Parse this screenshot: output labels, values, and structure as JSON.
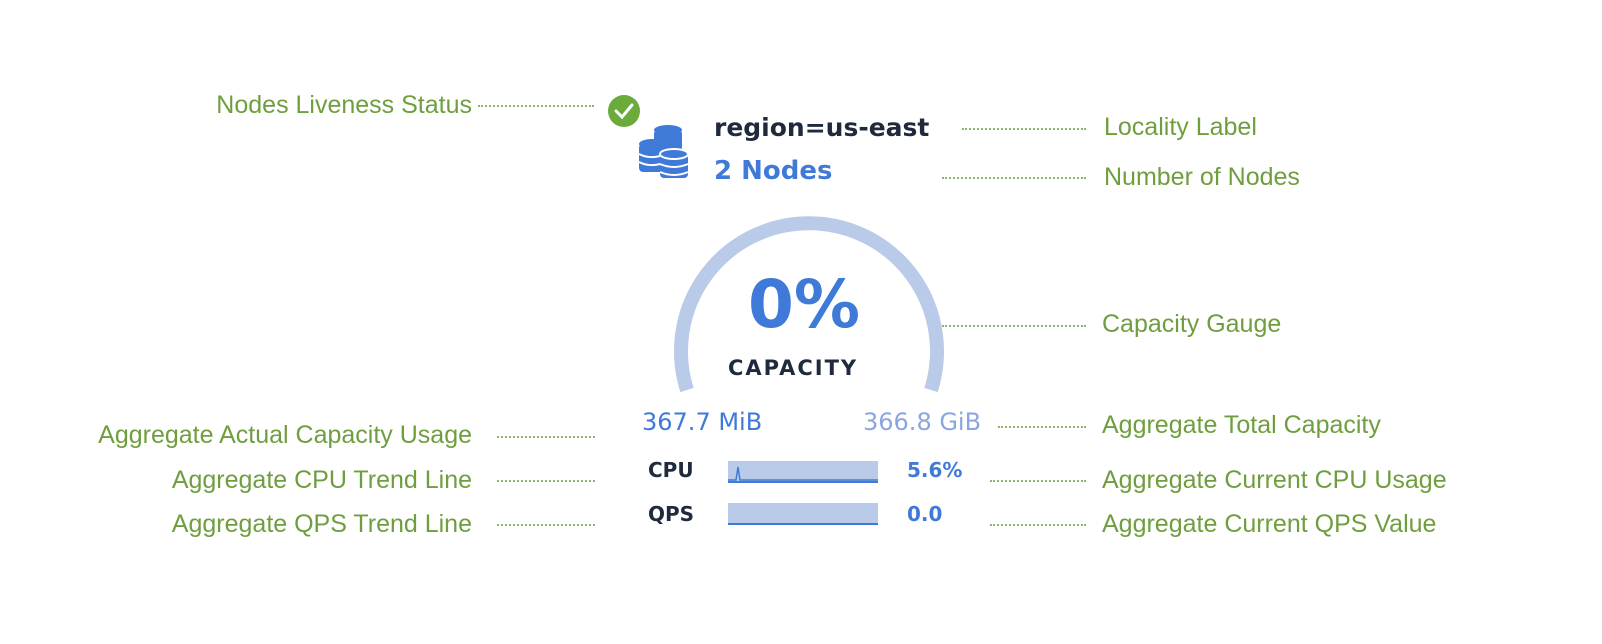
{
  "node_card": {
    "locality": "region=us-east",
    "nodes": "2 Nodes",
    "capacity_percent": "0%",
    "capacity_label": "CAPACITY",
    "used": "367.7 MiB",
    "total": "366.8 GiB",
    "cpu_label": "CPU",
    "cpu_value": "5.6%",
    "qps_label": "QPS",
    "qps_value": "0.0",
    "liveness": "live",
    "colors": {
      "accent": "#3f7ad8",
      "gauge": "#b9cbe8",
      "live": "#6aab3c",
      "annotation": "#6f9e3f"
    }
  },
  "annotations": {
    "liveness": "Nodes Liveness Status",
    "locality": "Locality Label",
    "node_count": "Number of Nodes",
    "gauge": "Capacity Gauge",
    "actual_usage": "Aggregate Actual Capacity Usage",
    "total_capacity": "Aggregate Total Capacity",
    "cpu_trend": "Aggregate CPU Trend Line",
    "cpu_current": "Aggregate Current CPU Usage",
    "qps_trend": "Aggregate QPS Trend Line",
    "qps_current": "Aggregate Current QPS Value"
  }
}
